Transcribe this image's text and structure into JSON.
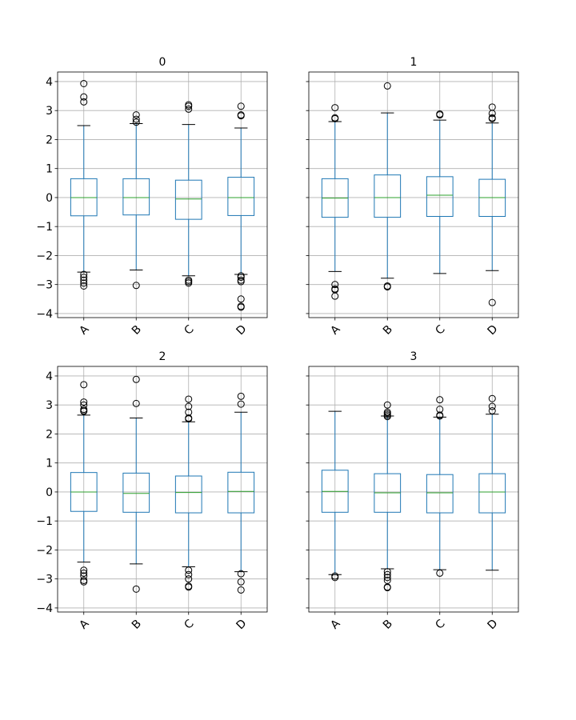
{
  "chart_data": {
    "type": "boxplot",
    "layout": "2x2 grid",
    "ylim": [
      -4.14,
      4.33
    ],
    "yticks": [
      -4,
      -3,
      -2,
      -1,
      0,
      1,
      2,
      3,
      4
    ],
    "grid": true,
    "sharey": true,
    "colors": {
      "box": "#1f77b4",
      "median": "#2ca02c",
      "whisker_cap": "#000000",
      "flier": "#000000",
      "grid": "#b0b0b0"
    },
    "categories": [
      "A",
      "B",
      "C",
      "D"
    ],
    "subplots": [
      {
        "title": "0",
        "boxes": [
          {
            "label": "A",
            "whislo": -2.57,
            "q1": -0.63,
            "med": 0.0,
            "q3": 0.65,
            "whishi": 2.48,
            "fliers": [
              3.93,
              3.47,
              3.3,
              -2.65,
              -2.75,
              -2.85,
              -2.95,
              -3.05
            ]
          },
          {
            "label": "B",
            "whislo": -2.5,
            "q1": -0.6,
            "med": 0.0,
            "q3": 0.65,
            "whishi": 2.55,
            "fliers": [
              2.85,
              2.7,
              2.6,
              -3.03
            ]
          },
          {
            "label": "C",
            "whislo": -2.7,
            "q1": -0.75,
            "med": -0.05,
            "q3": 0.6,
            "whishi": 2.52,
            "fliers": [
              3.2,
              3.15,
              3.05,
              -2.85,
              -2.9,
              -2.95
            ]
          },
          {
            "label": "D",
            "whislo": -2.65,
            "q1": -0.62,
            "med": 0.0,
            "q3": 0.7,
            "whishi": 2.4,
            "fliers": [
              3.15,
              2.85,
              2.82,
              -2.7,
              -2.75,
              -2.85,
              -2.9,
              -3.5,
              -3.75,
              -3.78
            ]
          }
        ]
      },
      {
        "title": "1",
        "boxes": [
          {
            "label": "A",
            "whislo": -2.55,
            "q1": -0.68,
            "med": -0.02,
            "q3": 0.65,
            "whishi": 2.62,
            "fliers": [
              3.1,
              2.75,
              2.72,
              -3.0,
              -3.15,
              -3.18,
              -3.4
            ]
          },
          {
            "label": "B",
            "whislo": -2.78,
            "q1": -0.68,
            "med": 0.0,
            "q3": 0.78,
            "whishi": 2.92,
            "fliers": [
              3.85,
              -3.05,
              -3.08
            ]
          },
          {
            "label": "C",
            "whislo": -2.62,
            "q1": -0.65,
            "med": 0.08,
            "q3": 0.72,
            "whishi": 2.67,
            "fliers": [
              2.88,
              2.85
            ]
          },
          {
            "label": "D",
            "whislo": -2.52,
            "q1": -0.65,
            "med": 0.0,
            "q3": 0.63,
            "whishi": 2.57,
            "fliers": [
              3.12,
              2.9,
              2.75,
              2.72,
              -3.62
            ]
          }
        ]
      },
      {
        "title": "2",
        "boxes": [
          {
            "label": "A",
            "whislo": -2.42,
            "q1": -0.67,
            "med": 0.0,
            "q3": 0.67,
            "whishi": 2.65,
            "fliers": [
              3.7,
              3.1,
              3.0,
              2.85,
              2.8,
              2.78,
              -2.7,
              -2.8,
              -2.9,
              -3.05,
              -3.1
            ]
          },
          {
            "label": "B",
            "whislo": -2.48,
            "q1": -0.7,
            "med": -0.05,
            "q3": 0.65,
            "whishi": 2.55,
            "fliers": [
              3.88,
              3.05,
              -3.35
            ]
          },
          {
            "label": "C",
            "whislo": -2.58,
            "q1": -0.72,
            "med": -0.02,
            "q3": 0.55,
            "whishi": 2.42,
            "fliers": [
              3.2,
              2.95,
              2.75,
              2.55,
              2.52,
              -2.7,
              -2.85,
              -3.0,
              -3.25,
              -3.28
            ]
          },
          {
            "label": "D",
            "whislo": -2.75,
            "q1": -0.72,
            "med": 0.02,
            "q3": 0.68,
            "whishi": 2.75,
            "fliers": [
              3.3,
              3.03,
              -2.82,
              -3.1,
              -3.38
            ]
          }
        ]
      },
      {
        "title": "3",
        "boxes": [
          {
            "label": "A",
            "whislo": -2.85,
            "q1": -0.7,
            "med": 0.02,
            "q3": 0.75,
            "whishi": 2.78,
            "fliers": [
              -2.9,
              -2.95
            ]
          },
          {
            "label": "B",
            "whislo": -2.65,
            "q1": -0.7,
            "med": -0.03,
            "q3": 0.63,
            "whishi": 2.62,
            "fliers": [
              3.0,
              2.75,
              2.7,
              2.65,
              2.6,
              -2.75,
              -2.85,
              -2.95,
              -3.05,
              -3.28,
              -3.3
            ]
          },
          {
            "label": "C",
            "whislo": -2.68,
            "q1": -0.72,
            "med": -0.03,
            "q3": 0.6,
            "whishi": 2.58,
            "fliers": [
              3.18,
              2.85,
              2.65,
              2.62,
              -2.8
            ]
          },
          {
            "label": "D",
            "whislo": -2.7,
            "q1": -0.72,
            "med": 0.0,
            "q3": 0.63,
            "whishi": 2.68,
            "fliers": [
              3.22,
              2.95,
              2.8
            ]
          }
        ]
      }
    ]
  }
}
